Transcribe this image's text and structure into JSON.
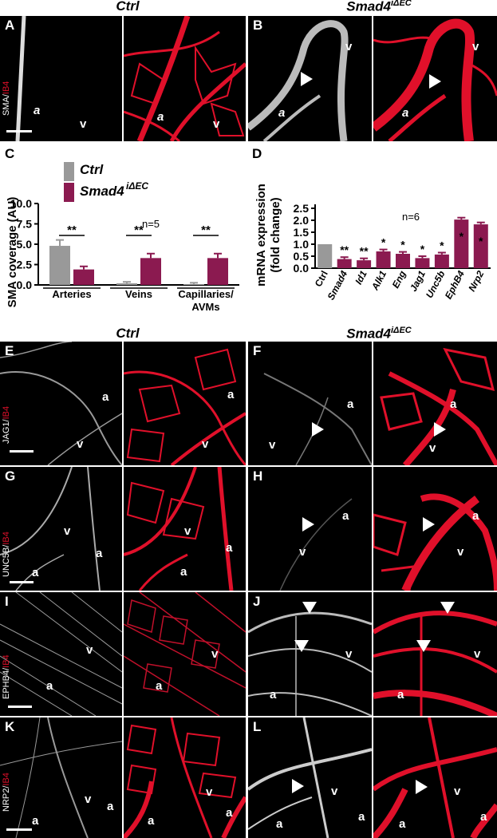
{
  "titles": {
    "ctrl": "Ctrl",
    "smad": "Smad4",
    "smad_sup": "iΔEC"
  },
  "panels": {
    "A": "A",
    "B": "B",
    "C": "C",
    "D": "D",
    "E": "E",
    "F": "F",
    "G": "G",
    "H": "H",
    "I": "I",
    "J": "J",
    "K": "K",
    "L": "L"
  },
  "stains": {
    "sma": "SMA/",
    "jag1": "JAG1/",
    "unc5b": "UNC5B/",
    "ephb4": "EPHB4/",
    "nrp2": "NRP2/",
    "ib4": "IB4"
  },
  "markers": {
    "a": "a",
    "v": "v"
  },
  "colors": {
    "ctrl": "#999999",
    "smad": "#8b1a50",
    "vessel": "#e0102a"
  },
  "chart_data": [
    {
      "type": "bar",
      "ylabel": "SMA coverage (AU)",
      "ylim": [
        0,
        10.0
      ],
      "yticks": [
        "0.0",
        "2.5",
        "5.0",
        "7.5",
        "10.0"
      ],
      "n_label": "n=5",
      "legend": [
        "Ctrl",
        "Smad4"
      ],
      "legend_sup": "iΔEC",
      "categories": [
        "Arteries",
        "Veins",
        "Capillaries/ AVMs"
      ],
      "series": [
        {
          "name": "Ctrl",
          "values": [
            4.8,
            0.2,
            0.1
          ]
        },
        {
          "name": "Smad4iΔEC",
          "values": [
            1.9,
            3.3,
            3.3
          ]
        }
      ],
      "significance": [
        "**",
        "**",
        "**"
      ]
    },
    {
      "type": "bar",
      "ylabel_line1": "mRNA  expression",
      "ylabel_line2": "(fold change)",
      "ylim": [
        0,
        2.5
      ],
      "yticks": [
        "0.0",
        "0.5",
        "1.0",
        "1.5",
        "2.0",
        "2.5"
      ],
      "n_label": "n=6",
      "categories": [
        "Ctrl",
        "Smad4",
        "Id1",
        "Alk1",
        "Eng",
        "Jag1",
        "Unc5b",
        "EphB4",
        "Nrp2"
      ],
      "values": [
        1.0,
        0.38,
        0.33,
        0.7,
        0.6,
        0.42,
        0.57,
        2.03,
        1.83
      ],
      "significance": [
        "",
        "**",
        "**",
        "*",
        "*",
        "*",
        "*",
        "*",
        "*"
      ]
    }
  ]
}
